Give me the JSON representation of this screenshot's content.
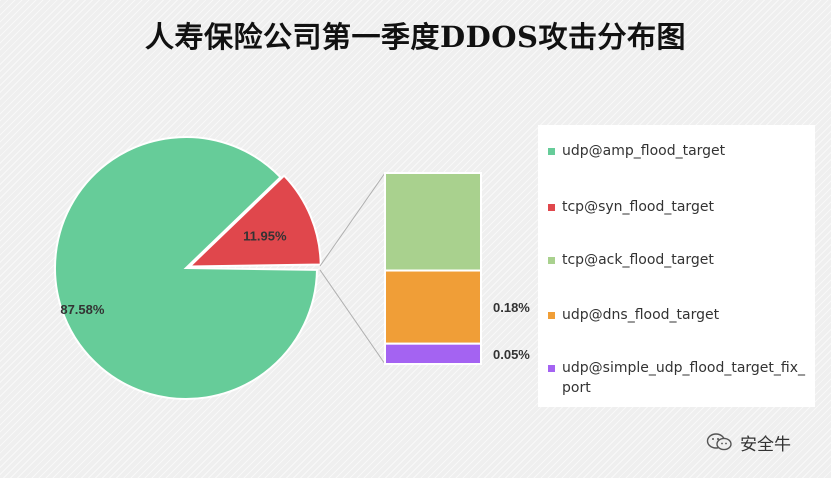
{
  "title": "人寿保险公司第一季度DDOS攻击分布图",
  "watermark": {
    "text": "安全牛",
    "icon": "wechat-icon"
  },
  "chart_data": {
    "type": "bar-of-pie",
    "title": "人寿保险公司第一季度DDOS攻击分布图",
    "legend_position": "right",
    "series": [
      {
        "name": "udp@amp_flood_target",
        "value": 87.58,
        "label": "87.58%",
        "color": "#66cc99"
      },
      {
        "name": "tcp@syn_flood_target",
        "value": 11.95,
        "label": "11.95%",
        "color": "#e0474c"
      },
      {
        "name": "tcp@ack_flood_target",
        "value": 0.24,
        "label": "",
        "color": "#a9d18e"
      },
      {
        "name": "udp@dns_flood_target",
        "value": 0.18,
        "label": "0.18%",
        "color": "#f09e37"
      },
      {
        "name": "udp@simple_udp_flood_target_fix_port",
        "value": 0.05,
        "label": "0.05%",
        "color": "#a463f2"
      }
    ]
  }
}
